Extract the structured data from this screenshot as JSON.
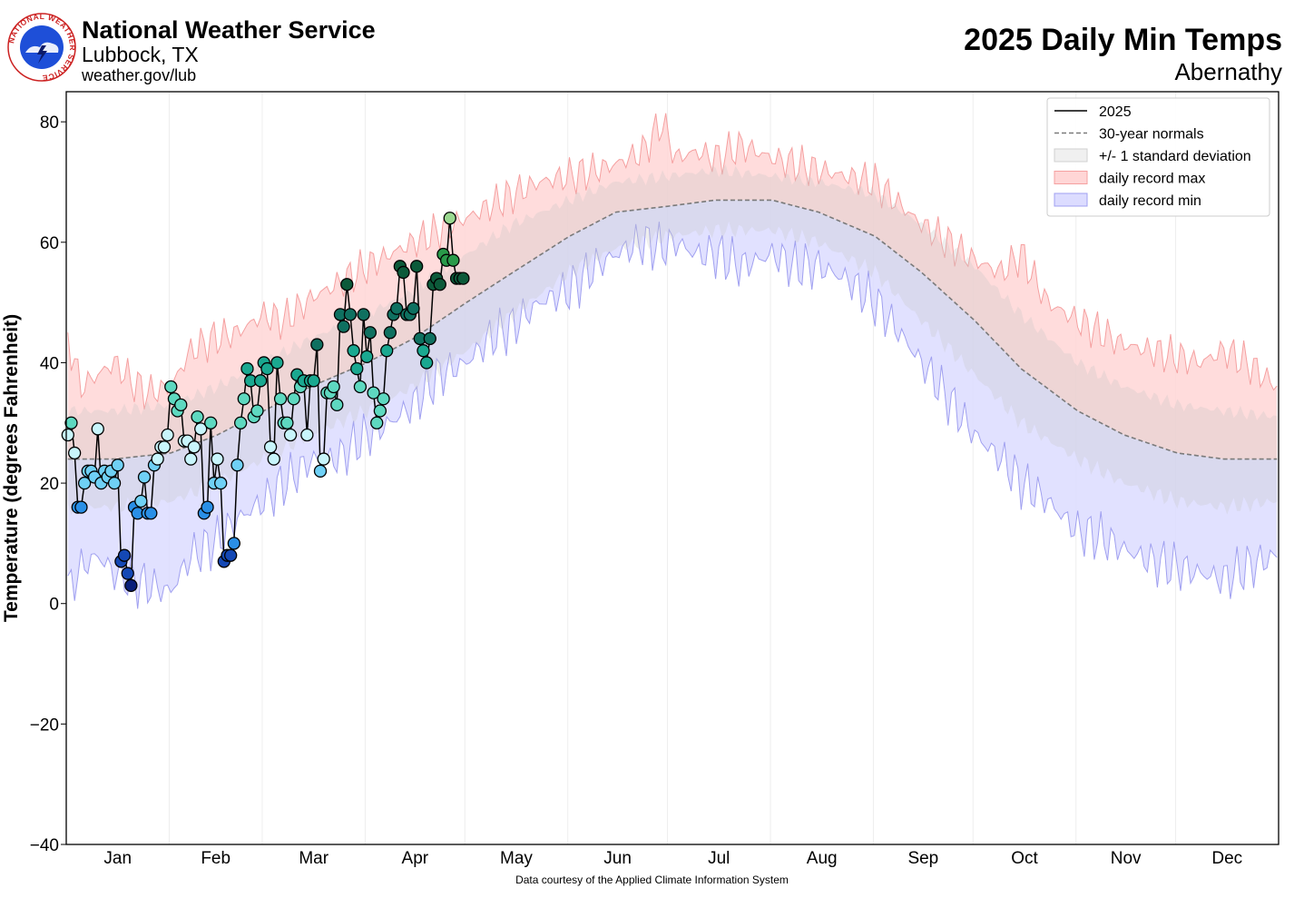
{
  "header": {
    "org_name": "National Weather Service",
    "office": "Lubbock, TX",
    "url": "weather.gov/lub",
    "logo_ring_text": "NATIONAL WEATHER SERVICE"
  },
  "footer": {
    "credit": "Data courtesy of the Applied Climate Information System"
  },
  "colors": {
    "record_max_fill": "#ffd6d6",
    "record_max_line": "#f5a0a0",
    "record_min_fill": "#dcdcff",
    "record_min_line": "#a0a0f0",
    "std_fill": "#c8c8c8",
    "normal_line": "#7a7a7a",
    "obs_line": "#000000",
    "colormap": [
      "#0a1f7a",
      "#1448b4",
      "#2a8fe6",
      "#6fd0f5",
      "#c8f5fb",
      "#5ed8c0",
      "#1aa890",
      "#0f7060",
      "#0c5a3a",
      "#2a9a4a",
      "#9ad890"
    ]
  },
  "chart_data": {
    "type": "line",
    "title": "2025 Daily Min Temps",
    "subtitle": "Abernathy",
    "ylabel": "Temperature (degrees Fahrenheit)",
    "xlabel": "",
    "ylim": [
      -40,
      85
    ],
    "xlim": [
      0.5,
      365.5
    ],
    "yticks": [
      -40,
      -20,
      0,
      20,
      40,
      60,
      80
    ],
    "ytick_labels": [
      "−40",
      "−20",
      "0",
      "20",
      "40",
      "60",
      "80"
    ],
    "month_labels": [
      "Jan",
      "Feb",
      "Mar",
      "Apr",
      "May",
      "Jun",
      "Jul",
      "Aug",
      "Sep",
      "Oct",
      "Nov",
      "Dec"
    ],
    "month_starts": [
      1,
      32,
      60,
      91,
      121,
      152,
      182,
      213,
      244,
      274,
      305,
      335,
      366
    ],
    "grid": "vertical month boundaries",
    "legend": {
      "placement": "top-right",
      "entries": [
        "2025",
        "30-year normals",
        "+/- 1 standard deviation",
        "daily record max",
        "daily record min"
      ]
    },
    "normals": {
      "x": [
        1,
        15,
        32,
        46,
        60,
        74,
        91,
        105,
        121,
        135,
        152,
        166,
        182,
        196,
        213,
        227,
        244,
        258,
        274,
        288,
        305,
        319,
        335,
        349,
        365
      ],
      "y": [
        24,
        24,
        25,
        28,
        32,
        36,
        40,
        44,
        50,
        55,
        61,
        65,
        66,
        67,
        67,
        65,
        61,
        55,
        47,
        39,
        32,
        28,
        25,
        24,
        24
      ]
    },
    "std_upper": {
      "x": [
        1,
        15,
        32,
        46,
        60,
        74,
        91,
        105,
        121,
        135,
        152,
        166,
        182,
        196,
        213,
        227,
        244,
        258,
        274,
        288,
        305,
        319,
        335,
        349,
        365
      ],
      "y": [
        32,
        32,
        33,
        36,
        40,
        44,
        48,
        52,
        58,
        63,
        67,
        70,
        71,
        72,
        71,
        70,
        68,
        63,
        56,
        48,
        40,
        36,
        33,
        32,
        31
      ]
    },
    "std_lower": {
      "x": [
        1,
        15,
        32,
        46,
        60,
        74,
        91,
        105,
        121,
        135,
        152,
        166,
        182,
        196,
        213,
        227,
        244,
        258,
        274,
        288,
        305,
        319,
        335,
        349,
        365
      ],
      "y": [
        16,
        16,
        17,
        20,
        24,
        28,
        32,
        36,
        42,
        48,
        55,
        59,
        61,
        62,
        62,
        60,
        55,
        47,
        38,
        30,
        24,
        20,
        17,
        16,
        17
      ]
    },
    "record_max": {
      "x": [
        1,
        5,
        10,
        15,
        20,
        25,
        32,
        38,
        45,
        52,
        60,
        66,
        75,
        82,
        91,
        98,
        105,
        113,
        121,
        128,
        135,
        143,
        152,
        160,
        166,
        174,
        180,
        184,
        190,
        196,
        204,
        213,
        220,
        227,
        235,
        244,
        250,
        258,
        266,
        274,
        282,
        288,
        296,
        305,
        312,
        319,
        327,
        335,
        342,
        349,
        356,
        365
      ],
      "y": [
        44,
        36,
        38,
        40,
        37,
        35,
        36,
        42,
        44,
        45,
        48,
        47,
        51,
        53,
        56,
        58,
        60,
        62,
        64,
        66,
        68,
        70,
        71,
        72,
        73,
        75,
        80,
        74,
        75,
        74,
        76,
        74,
        73,
        72,
        71,
        70,
        67,
        63,
        60,
        57,
        55,
        58,
        50,
        47,
        45,
        43,
        42,
        41,
        40,
        42,
        40,
        36
      ]
    },
    "record_min": {
      "x": [
        1,
        5,
        10,
        15,
        20,
        25,
        32,
        38,
        45,
        52,
        60,
        66,
        75,
        82,
        91,
        98,
        105,
        113,
        121,
        128,
        135,
        143,
        152,
        160,
        166,
        174,
        180,
        184,
        190,
        196,
        204,
        213,
        220,
        227,
        235,
        244,
        250,
        258,
        266,
        274,
        282,
        288,
        296,
        305,
        312,
        319,
        327,
        335,
        342,
        349,
        356,
        365
      ],
      "y": [
        2,
        6,
        8,
        5,
        4,
        3,
        2,
        8,
        10,
        14,
        17,
        20,
        24,
        24,
        28,
        30,
        33,
        38,
        40,
        44,
        46,
        50,
        52,
        56,
        58,
        60,
        59,
        60,
        58,
        58,
        56,
        58,
        56,
        56,
        54,
        50,
        46,
        40,
        34,
        28,
        24,
        20,
        17,
        12,
        11,
        9,
        7,
        6,
        5,
        4,
        6,
        8
      ]
    },
    "series": [
      {
        "name": "2025",
        "x": [
          1,
          2,
          3,
          4,
          5,
          6,
          7,
          8,
          9,
          10,
          11,
          12,
          13,
          14,
          15,
          16,
          17,
          18,
          19,
          20,
          21,
          22,
          23,
          24,
          25,
          26,
          27,
          28,
          29,
          30,
          31,
          32,
          33,
          34,
          35,
          36,
          37,
          38,
          39,
          40,
          41,
          42,
          43,
          44,
          45,
          46,
          47,
          48,
          49,
          50,
          51,
          52,
          53,
          54,
          55,
          56,
          57,
          58,
          59,
          60,
          61,
          62,
          63,
          64,
          65,
          66,
          67,
          68,
          69,
          70,
          71,
          72,
          73,
          74,
          75,
          76,
          77,
          78,
          79,
          80,
          81,
          82,
          83,
          84,
          85,
          86,
          87,
          88,
          89,
          90,
          91,
          92,
          93,
          94,
          95,
          96,
          97,
          98,
          99,
          100,
          101,
          102,
          103,
          104,
          105,
          106,
          107,
          108,
          109,
          110,
          111,
          112,
          113,
          114,
          115,
          116,
          117,
          118,
          119,
          120
        ],
        "y": [
          28,
          30,
          25,
          16,
          16,
          20,
          22,
          22,
          21,
          29,
          20,
          22,
          21,
          22,
          20,
          23,
          7,
          8,
          5,
          3,
          16,
          15,
          17,
          21,
          15,
          15,
          23,
          24,
          26,
          26,
          28,
          36,
          34,
          32,
          33,
          27,
          27,
          24,
          26,
          31,
          29,
          15,
          16,
          30,
          20,
          24,
          20,
          7,
          8,
          8,
          10,
          23,
          30,
          34,
          39,
          37,
          31,
          32,
          37,
          40,
          39,
          26,
          24,
          40,
          34,
          30,
          30,
          28,
          34,
          38,
          36,
          37,
          28,
          37,
          37,
          43,
          22,
          24,
          35,
          35,
          36,
          33,
          48,
          46,
          53,
          48,
          42,
          39,
          36,
          48,
          41,
          45,
          35,
          30,
          32,
          34,
          42,
          45,
          48,
          49,
          56,
          55,
          48,
          48,
          49,
          56,
          44,
          42,
          40,
          44,
          53,
          54,
          53,
          58,
          57,
          64,
          57,
          54,
          54,
          54
        ]
      }
    ]
  }
}
